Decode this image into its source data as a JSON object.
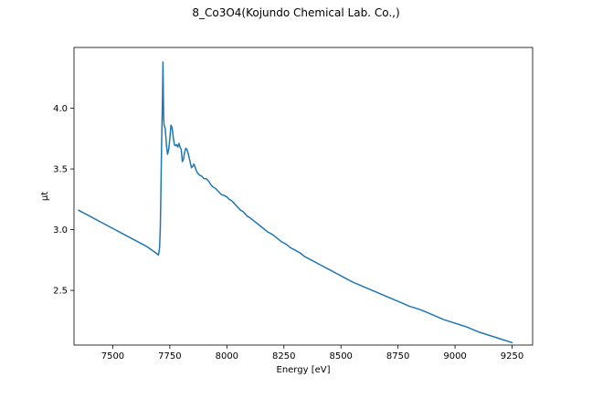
{
  "chart_data": {
    "type": "line",
    "title": "8_Co3O4(Kojundo Chemical Lab. Co.,)",
    "xlabel": "Energy [eV]",
    "ylabel": "μt",
    "xlim": [
      7330,
      9340
    ],
    "ylim": [
      2.05,
      4.5
    ],
    "xticks": [
      7500,
      7750,
      8000,
      8250,
      8500,
      8750,
      9000,
      9250
    ],
    "xtick_labels": [
      "7500",
      "7750",
      "8000",
      "8250",
      "8500",
      "8750",
      "9000",
      "9250"
    ],
    "yticks": [
      2.5,
      3.0,
      3.5,
      4.0
    ],
    "ytick_labels": [
      "2.5",
      "3.0",
      "3.5",
      "4.0"
    ],
    "grid": false,
    "series": [
      {
        "color": "#1f77b4",
        "x": [
          7350,
          7400,
          7450,
          7500,
          7550,
          7600,
          7650,
          7680,
          7695,
          7700,
          7702,
          7705,
          7708,
          7710,
          7712,
          7714,
          7716,
          7718,
          7720,
          7722,
          7723,
          7724,
          7725,
          7727,
          7730,
          7735,
          7740,
          7745,
          7750,
          7755,
          7760,
          7765,
          7770,
          7775,
          7780,
          7785,
          7790,
          7795,
          7800,
          7805,
          7810,
          7815,
          7820,
          7825,
          7830,
          7835,
          7840,
          7845,
          7850,
          7855,
          7860,
          7865,
          7870,
          7880,
          7890,
          7900,
          7910,
          7920,
          7930,
          7940,
          7950,
          7960,
          7975,
          7990,
          8000,
          8010,
          8020,
          8030,
          8040,
          8050,
          8060,
          8070,
          8080,
          8090,
          8100,
          8120,
          8140,
          8160,
          8180,
          8200,
          8220,
          8240,
          8260,
          8280,
          8300,
          8320,
          8340,
          8360,
          8380,
          8400,
          8420,
          8440,
          8460,
          8480,
          8500,
          8550,
          8600,
          8650,
          8700,
          8750,
          8800,
          8850,
          8900,
          8950,
          9000,
          9050,
          9100,
          9150,
          9200,
          9250
        ],
        "y": [
          3.16,
          3.11,
          3.06,
          3.01,
          2.96,
          2.91,
          2.86,
          2.82,
          2.8,
          2.79,
          2.81,
          2.85,
          3.0,
          3.2,
          3.45,
          3.7,
          3.9,
          4.1,
          4.38,
          4.05,
          3.92,
          3.88,
          3.86,
          3.85,
          3.83,
          3.7,
          3.62,
          3.66,
          3.75,
          3.86,
          3.84,
          3.76,
          3.7,
          3.69,
          3.7,
          3.68,
          3.71,
          3.68,
          3.66,
          3.56,
          3.58,
          3.64,
          3.67,
          3.66,
          3.63,
          3.59,
          3.55,
          3.51,
          3.52,
          3.54,
          3.52,
          3.49,
          3.47,
          3.45,
          3.44,
          3.42,
          3.42,
          3.4,
          3.37,
          3.35,
          3.34,
          3.32,
          3.29,
          3.28,
          3.27,
          3.25,
          3.24,
          3.22,
          3.2,
          3.18,
          3.16,
          3.15,
          3.13,
          3.11,
          3.1,
          3.07,
          3.04,
          3.01,
          2.98,
          2.96,
          2.93,
          2.9,
          2.88,
          2.85,
          2.83,
          2.81,
          2.78,
          2.76,
          2.74,
          2.72,
          2.7,
          2.68,
          2.66,
          2.64,
          2.62,
          2.57,
          2.53,
          2.49,
          2.45,
          2.41,
          2.37,
          2.34,
          2.3,
          2.26,
          2.23,
          2.2,
          2.16,
          2.13,
          2.1,
          2.07
        ]
      }
    ]
  }
}
